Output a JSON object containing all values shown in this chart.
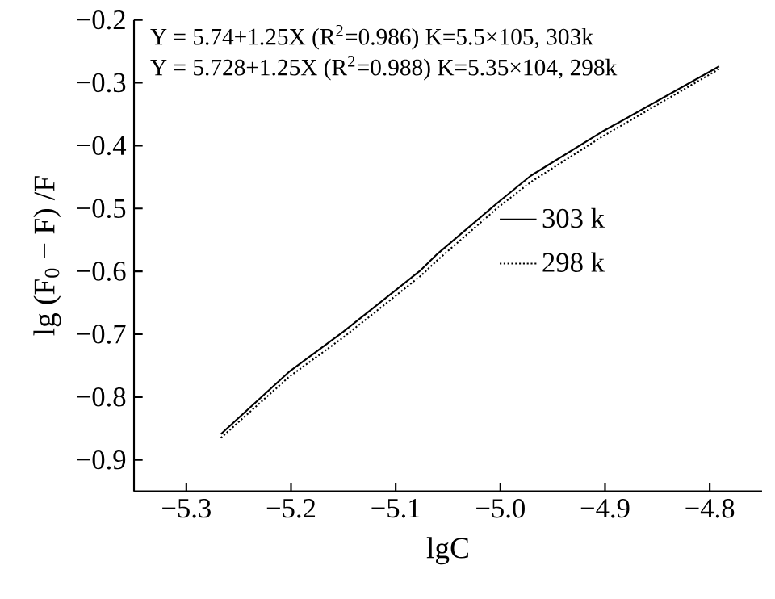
{
  "chart_data": {
    "type": "line",
    "xlabel": "lgC",
    "ylabel": "lg (F$_{0}$ − F) /F",
    "annotations": [
      "Y = 5.74+1.25X (R$^{2}$=0.986) K=5.5×105, 303k",
      "Y = 5.728+1.25X (R$^{2}$=0.988) K=5.35×104, 298k"
    ],
    "xlim": [
      -5.35,
      -4.75
    ],
    "ylim": [
      -0.95,
      -0.2
    ],
    "xticks": [
      {
        "value": -5.3,
        "label": "−5.3"
      },
      {
        "value": -5.2,
        "label": "−5.2"
      },
      {
        "value": -5.1,
        "label": "−5.1"
      },
      {
        "value": -5.0,
        "label": "−5.0"
      },
      {
        "value": -4.9,
        "label": "−4.9"
      },
      {
        "value": -4.8,
        "label": "−4.8"
      }
    ],
    "yticks": [
      {
        "value": -0.2,
        "label": "−0.2"
      },
      {
        "value": -0.3,
        "label": "−0.3"
      },
      {
        "value": -0.4,
        "label": "−0.4"
      },
      {
        "value": -0.5,
        "label": "−0.5"
      },
      {
        "value": -0.6,
        "label": "−0.6"
      },
      {
        "value": -0.7,
        "label": "−0.7"
      },
      {
        "value": -0.8,
        "label": "−0.8"
      },
      {
        "value": -0.9,
        "label": "−0.9"
      }
    ],
    "x": [
      -5.267,
      -5.202,
      -5.15,
      -5.076,
      -5.06,
      -5.002,
      -4.971,
      -4.904,
      -4.791
    ],
    "series": [
      {
        "name": "303 k",
        "color": "#000000",
        "line_style": "solid",
        "values": [
          -0.859,
          -0.76,
          -0.696,
          -0.598,
          -0.572,
          -0.49,
          -0.448,
          -0.379,
          -0.274
        ]
      },
      {
        "name": "298 k",
        "color": "#000000",
        "line_style": "dotted",
        "values": [
          -0.865,
          -0.768,
          -0.705,
          -0.607,
          -0.582,
          -0.498,
          -0.458,
          -0.387,
          -0.278
        ]
      }
    ],
    "legend": "right",
    "grid": false,
    "marker": "none"
  }
}
